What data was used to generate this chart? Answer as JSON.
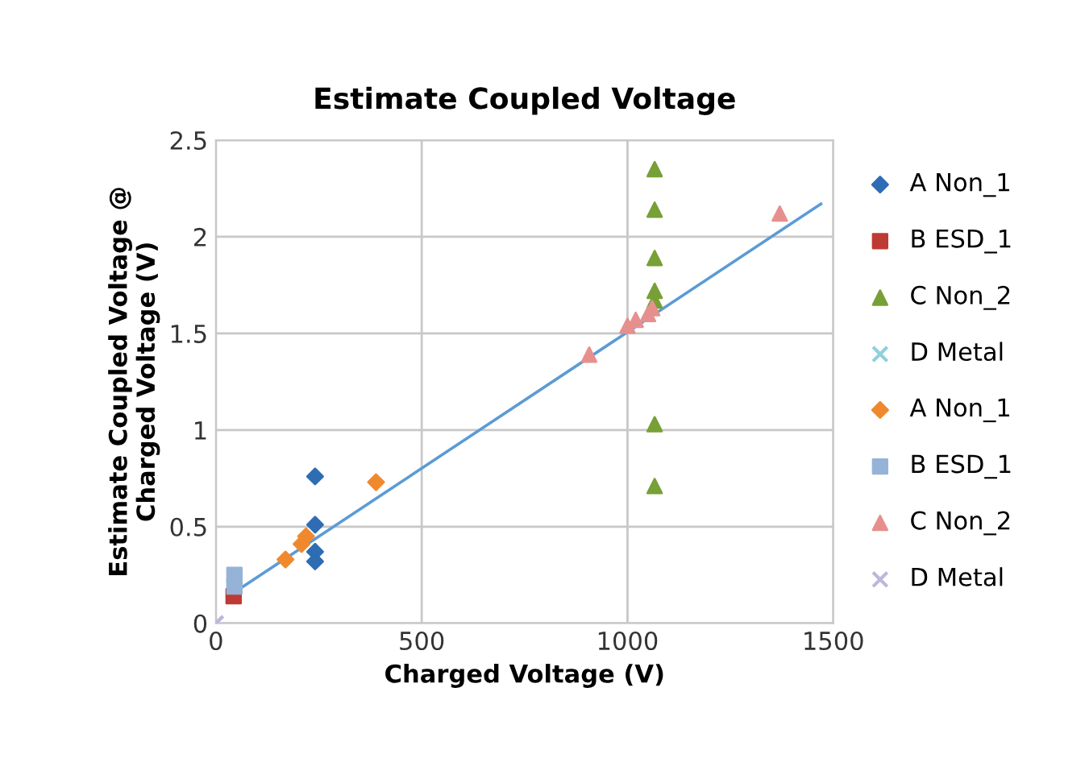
{
  "chart_data": {
    "type": "scatter",
    "title": "Estimate Coupled Voltage",
    "xlabel": "Charged Voltage (V)",
    "ylabel": "Estimate Coupled Voltage @\nCharged Voltage (V)",
    "xlim": [
      0,
      1500
    ],
    "ylim": [
      0,
      2.5
    ],
    "xticks": [
      0,
      500,
      1000,
      1500
    ],
    "yticks": [
      0,
      0.5,
      1,
      1.5,
      2,
      2.5
    ],
    "grid": true,
    "legend": "right",
    "series": [
      {
        "name": "A Non_1",
        "color": "#2e6db4",
        "marker": "diamond",
        "x": [
          241,
          241,
          241,
          241
        ],
        "values": [
          0.76,
          0.51,
          0.37,
          0.32
        ]
      },
      {
        "name": "B ESD_1",
        "color": "#be3a34",
        "marker": "square",
        "x": [
          43
        ],
        "values": [
          0.14
        ]
      },
      {
        "name": "C Non_2",
        "color": "#77a036",
        "marker": "triangle",
        "x": [
          1066,
          1066,
          1066,
          1066,
          1066,
          1066,
          1066
        ],
        "values": [
          2.35,
          2.14,
          1.89,
          1.72,
          1.67,
          1.03,
          0.71
        ]
      },
      {
        "name": "D Metal",
        "color": "#8fd0dc",
        "marker": "cross",
        "x": [
          0
        ],
        "values": [
          0
        ]
      },
      {
        "name": "A Non_1",
        "color": "#f0892e",
        "marker": "diamond",
        "x": [
          169,
          208,
          219,
          389
        ],
        "values": [
          0.33,
          0.41,
          0.45,
          0.73
        ]
      },
      {
        "name": "B ESD_1",
        "color": "#95b3d7",
        "marker": "square",
        "x": [
          45,
          45
        ],
        "values": [
          0.19,
          0.25
        ]
      },
      {
        "name": "C Non_2",
        "color": "#e6908e",
        "marker": "triangle",
        "x": [
          907,
          1000,
          1020,
          1050,
          1060,
          1370
        ],
        "values": [
          1.39,
          1.54,
          1.57,
          1.6,
          1.63,
          2.12
        ]
      },
      {
        "name": "D Metal",
        "color": "#c0b6dc",
        "marker": "cross",
        "x": [
          0
        ],
        "values": [
          0
        ]
      },
      {
        "type": "line",
        "color": "#5b9bd5",
        "marker": "none",
        "x": [
          45,
          1470
        ],
        "values": [
          0.16,
          2.17
        ]
      }
    ]
  }
}
